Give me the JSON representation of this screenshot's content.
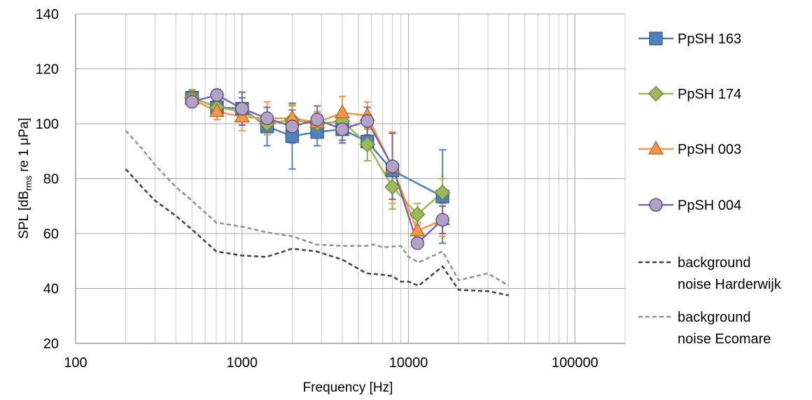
{
  "chart_data": {
    "type": "line",
    "xlabel": "Frequency [Hz]",
    "ylabel": {
      "prefix": "SPL [dB",
      "sub": "rms",
      "suffix": " re 1 μPa]"
    },
    "x_scale": "log",
    "xlim": [
      100,
      200000
    ],
    "ylim": [
      20,
      140
    ],
    "x_ticks": [
      100,
      1000,
      10000,
      100000
    ],
    "x_tick_labels": [
      "100",
      "1000",
      "10000",
      "100000"
    ],
    "y_ticks": [
      20,
      40,
      60,
      80,
      100,
      120,
      140
    ],
    "y_tick_labels": [
      "20",
      "40",
      "60",
      "80",
      "100",
      "120",
      "140"
    ],
    "grid": "major and minor vertical, major horizontal",
    "legend_position": "right",
    "series": [
      {
        "name": "PpSH 163",
        "color": "#4f81bd",
        "marker": "square",
        "x": [
          500,
          707,
          1000,
          1414,
          2000,
          2828,
          4000,
          5657,
          8000,
          16000
        ],
        "y": [
          109.5,
          106,
          105.5,
          99,
          95.5,
          97,
          98,
          93.5,
          83,
          73.5
        ],
        "err": [
          3,
          3,
          4,
          7,
          12,
          5,
          4,
          7,
          14,
          17
        ]
      },
      {
        "name": "PpSH 174",
        "color": "#9bbb59",
        "marker": "diamond",
        "x": [
          500,
          707,
          1000,
          1414,
          2000,
          2828,
          4000,
          5657,
          8000,
          11314,
          16000
        ],
        "y": [
          109.5,
          106,
          104.5,
          100,
          101.5,
          100,
          101,
          92.5,
          77,
          67,
          75
        ],
        "err": [
          3,
          3,
          3,
          4,
          5,
          4,
          4,
          6,
          8,
          4,
          5
        ]
      },
      {
        "name": "PpSH 003",
        "color": "#f79646",
        "marker": "triangle",
        "x": [
          500,
          707,
          1000,
          1414,
          2000,
          2828,
          4000,
          5657,
          8000,
          11314,
          16000
        ],
        "y": [
          109,
          104.5,
          102.5,
          102,
          102,
          100.5,
          104,
          103,
          84,
          61,
          65
        ],
        "err": [
          3,
          3,
          5,
          6,
          5,
          4,
          6,
          5,
          13,
          3,
          6
        ]
      },
      {
        "name": "PpSH 004",
        "color": "#8064a2",
        "fill": "#b3a2c7",
        "marker": "circle",
        "x": [
          500,
          707,
          1000,
          1414,
          2000,
          2828,
          4000,
          5657,
          8000,
          11314,
          16000
        ],
        "y": [
          108,
          110.5,
          105.5,
          102,
          99,
          101.5,
          98,
          101,
          84.5,
          56.5,
          65
        ],
        "err": [
          2,
          2,
          6,
          4,
          6,
          5,
          5,
          5,
          12,
          2,
          5
        ]
      },
      {
        "name": "background noise Harderwijk",
        "legend_lines": [
          "background",
          "noise Harderwijk"
        ],
        "color": "#404040",
        "dashed": true,
        "x": [
          200,
          250,
          300,
          400,
          500,
          700,
          1000,
          1400,
          2000,
          2800,
          4000,
          5600,
          7000,
          8000,
          9000,
          10000,
          11500,
          16000,
          20000,
          30000,
          40000
        ],
        "y": [
          83.5,
          77,
          72,
          66.5,
          61.5,
          53.5,
          52,
          51.5,
          54.5,
          53.5,
          50.5,
          45.5,
          45,
          44.5,
          42.5,
          42.5,
          41,
          48,
          39.5,
          39,
          37.5
        ]
      },
      {
        "name": "background noise Ecomare",
        "legend_lines": [
          "background",
          "noise Ecomare"
        ],
        "color": "#909090",
        "dashed": true,
        "x": [
          200,
          250,
          300,
          400,
          500,
          700,
          1000,
          1400,
          2000,
          2800,
          4000,
          5600,
          6200,
          7000,
          9000,
          10000,
          11500,
          16000,
          20000,
          30000,
          40000
        ],
        "y": [
          97.5,
          91,
          85,
          77,
          72,
          64,
          62.5,
          60.5,
          59,
          56,
          55.5,
          55.5,
          56,
          55,
          55.5,
          51.5,
          49.5,
          53.5,
          43,
          45.5,
          41
        ]
      }
    ]
  }
}
